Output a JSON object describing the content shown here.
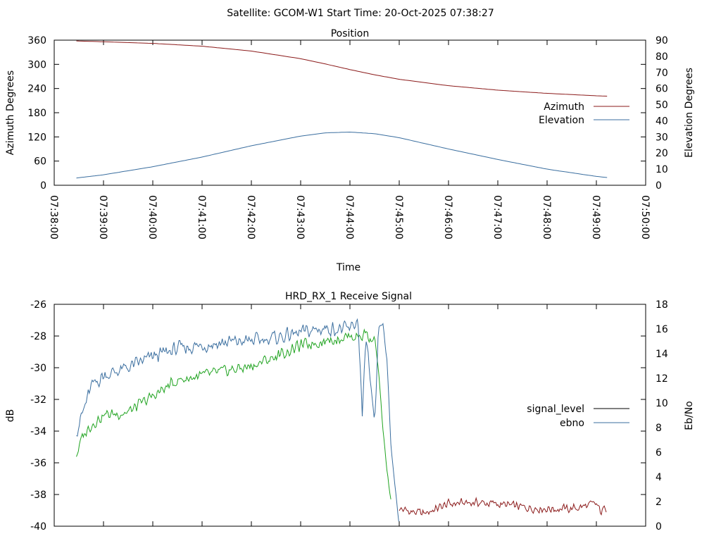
{
  "header": {
    "title": "Satellite: GCOM-W1    Start Time: 20-Oct-2025 07:38:27"
  },
  "chart_data": [
    {
      "type": "line",
      "title": "Position",
      "xlabel": "Time",
      "ylabel": "Azimuth Degrees",
      "y2label": "Elevation Degrees",
      "xlim": [
        "07:38:00",
        "07:50:00"
      ],
      "ylim": [
        0,
        360
      ],
      "y2lim": [
        0,
        90
      ],
      "x_ticks": [
        "07:38:00",
        "07:39:00",
        "07:40:00",
        "07:41:00",
        "07:42:00",
        "07:43:00",
        "07:44:00",
        "07:45:00",
        "07:46:00",
        "07:47:00",
        "07:48:00",
        "07:49:00",
        "07:50:00"
      ],
      "y_ticks": [
        "0",
        "60",
        "120",
        "180",
        "240",
        "300",
        "360"
      ],
      "y2_ticks": [
        "0",
        "10",
        "20",
        "30",
        "40",
        "50",
        "60",
        "70",
        "80",
        "90"
      ],
      "grid": false,
      "legend": "right",
      "series": [
        {
          "name": "Azimuth",
          "axis": "y",
          "color": "#8b1a1a",
          "x": [
            "07:38:27",
            "07:39:00",
            "07:40:00",
            "07:41:00",
            "07:42:00",
            "07:43:00",
            "07:43:30",
            "07:44:00",
            "07:44:30",
            "07:45:00",
            "07:46:00",
            "07:47:00",
            "07:48:00",
            "07:49:00",
            "07:49:13"
          ],
          "y": [
            358,
            356,
            352,
            345,
            333,
            314,
            301,
            287,
            274,
            263,
            247,
            236,
            228,
            222,
            221
          ]
        },
        {
          "name": "Elevation",
          "axis": "y2",
          "color": "#3a6e9f",
          "x": [
            "07:38:27",
            "07:39:00",
            "07:40:00",
            "07:41:00",
            "07:42:00",
            "07:43:00",
            "07:43:30",
            "07:44:00",
            "07:44:30",
            "07:45:00",
            "07:46:00",
            "07:47:00",
            "07:48:00",
            "07:49:00",
            "07:49:13"
          ],
          "y": [
            4.5,
            6.5,
            11.5,
            17.5,
            24.5,
            30.5,
            32.5,
            33,
            32,
            29.5,
            22.5,
            16,
            10,
            5.5,
            4.8
          ]
        }
      ]
    },
    {
      "type": "line",
      "title": "HRD_RX_1 Receive Signal",
      "ylabel": "dB",
      "y2label": "Eb/No",
      "xlim": [
        "07:38:00",
        "07:50:00"
      ],
      "ylim": [
        -40,
        -26
      ],
      "y2lim": [
        0,
        18
      ],
      "y_ticks": [
        "-40",
        "-38",
        "-36",
        "-34",
        "-32",
        "-30",
        "-28",
        "-26"
      ],
      "y2_ticks": [
        "0",
        "2",
        "4",
        "6",
        "8",
        "10",
        "12",
        "14",
        "16",
        "18"
      ],
      "grid": false,
      "legend": "right",
      "series": [
        {
          "name": "signal_level",
          "color": "#8b1a1a",
          "x": [
            "07:45:00",
            "07:45:15",
            "07:45:30",
            "07:46:00",
            "07:46:30",
            "07:47:00",
            "07:47:30",
            "07:48:00",
            "07:48:30",
            "07:49:00",
            "07:49:05",
            "07:49:13"
          ],
          "y": [
            -38.9,
            -39.1,
            -39.2,
            -38.6,
            -38.5,
            -38.6,
            -38.8,
            -38.9,
            -38.9,
            -38.6,
            -39.1,
            -38.8
          ]
        },
        {
          "name": "ebno",
          "color": "#3a6e9f",
          "x": [
            "07:38:27",
            "07:38:35",
            "07:38:45",
            "07:39:00",
            "07:39:30",
            "07:40:00",
            "07:40:30",
            "07:41:00",
            "07:41:30",
            "07:42:00",
            "07:42:30",
            "07:43:00",
            "07:43:30",
            "07:44:00",
            "07:44:10",
            "07:44:15",
            "07:44:20",
            "07:44:30",
            "07:44:35",
            "07:44:40",
            "07:44:45",
            "07:44:50",
            "07:45:00"
          ],
          "y": [
            -34.0,
            -32.8,
            -31.2,
            -30.5,
            -30.0,
            -29.3,
            -28.8,
            -28.6,
            -28.4,
            -28.3,
            -28.1,
            -27.8,
            -27.5,
            -27.6,
            -27.0,
            -33.0,
            -28.0,
            -34.0,
            -27.5,
            -27.2,
            -29.5,
            -35.0,
            -40.0
          ]
        },
        {
          "name": "",
          "color": "#1fa31f",
          "x": [
            "07:38:27",
            "07:38:35",
            "07:38:45",
            "07:39:00",
            "07:39:30",
            "07:40:00",
            "07:40:30",
            "07:41:00",
            "07:41:30",
            "07:42:00",
            "07:42:30",
            "07:43:00",
            "07:43:30",
            "07:44:00",
            "07:44:15",
            "07:44:20",
            "07:44:25",
            "07:44:30",
            "07:44:35",
            "07:44:40",
            "07:44:45",
            "07:44:50"
          ],
          "y": [
            -35.5,
            -34.3,
            -33.6,
            -33.0,
            -32.8,
            -31.8,
            -30.8,
            -30.5,
            -30.2,
            -29.9,
            -29.3,
            -28.6,
            -28.3,
            -28.0,
            -28.0,
            -27.7,
            -28.4,
            -28.0,
            -30.3,
            -33.8,
            -36.5,
            -38.5
          ]
        }
      ]
    }
  ]
}
